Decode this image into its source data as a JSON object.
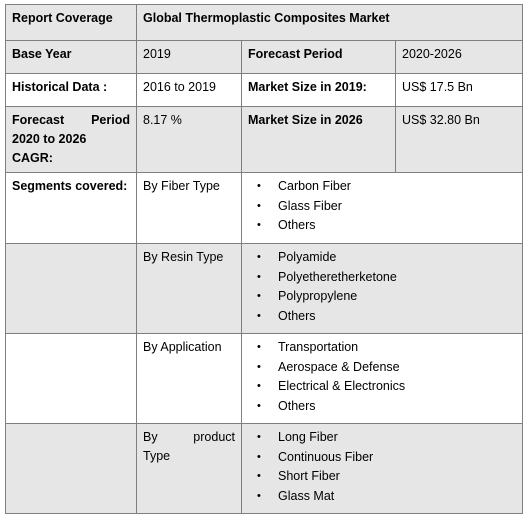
{
  "header": {
    "label": "Report Coverage",
    "title": "Global Thermoplastic Composites Market"
  },
  "base_year": {
    "label": "Base Year",
    "value": "2019"
  },
  "forecast_period": {
    "label": "Forecast Period",
    "value": "2020-2026"
  },
  "historical_data": {
    "label": "Historical Data :",
    "value": "2016 to 2019"
  },
  "market_size_2019": {
    "label": "Market Size in 2019:",
    "value": "US$ 17.5 Bn"
  },
  "cagr": {
    "label_line1": "Forecast Period",
    "label_line2": "2020 to 2026 CAGR:",
    "value": "8.17 %"
  },
  "market_size_2026": {
    "label": "Market Size in 2026",
    "value": "US$ 32.80 Bn"
  },
  "segments": {
    "label": "Segments covered:",
    "groups": [
      {
        "name": "By  Fiber Type",
        "items": [
          "Carbon Fiber",
          "Glass Fiber",
          "Others"
        ]
      },
      {
        "name": "By Resin Type",
        "items": [
          "Polyamide",
          "Polyetheretherketone",
          "Polypropylene",
          "Others"
        ]
      },
      {
        "name": "By Application",
        "items": [
          "Transportation",
          "Aerospace & Defense",
          "Electrical & Electronics",
          "Others"
        ]
      },
      {
        "name_line1": "By product",
        "name_line2": "Type",
        "items": [
          "Long Fiber",
          "Continuous Fiber",
          "Short Fiber",
          "Glass Mat"
        ]
      }
    ]
  },
  "bullet_symbol": "•"
}
